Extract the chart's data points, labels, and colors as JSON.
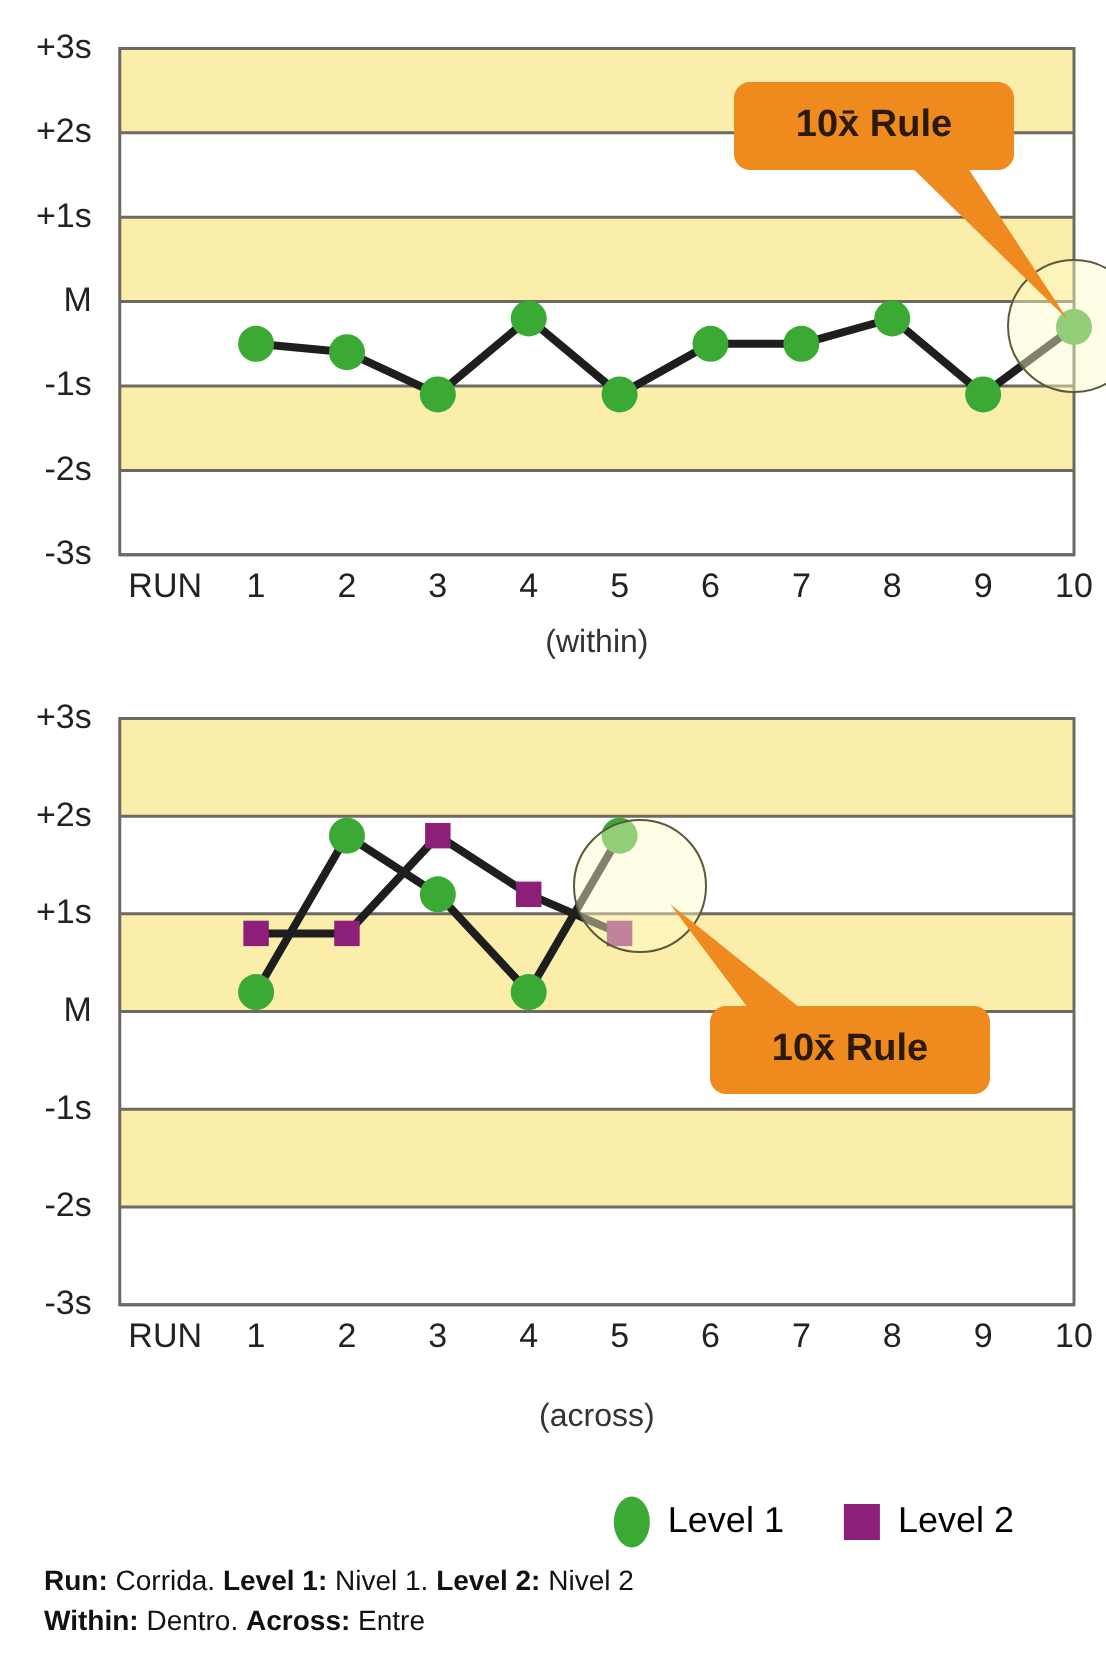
{
  "chart_data": [
    {
      "type": "line",
      "xlabel": "(within)",
      "x": [
        1,
        2,
        3,
        4,
        5,
        6,
        7,
        8,
        9,
        10
      ],
      "series": [
        {
          "color": "#3aaa35",
          "marker": "circle",
          "values": [
            -0.5,
            -0.6,
            -1.1,
            -0.2,
            -1.1,
            -0.5,
            -0.5,
            -0.2,
            -1.1,
            -0.3
          ]
        }
      ],
      "xlim": [
        -0.5,
        10
      ],
      "xticks": [
        {
          "value": 0,
          "label": "RUN"
        },
        1,
        2,
        3,
        4,
        5,
        6,
        7,
        8,
        9,
        10
      ],
      "ylim": [
        -3,
        3
      ],
      "yticks": [
        {
          "value": -3,
          "label": "-3s"
        },
        {
          "value": -2,
          "label": "-2s"
        },
        {
          "value": -1,
          "label": "-1s"
        },
        {
          "value": 0,
          "label": "M"
        },
        {
          "value": 1,
          "label": "+1s"
        },
        {
          "value": 2,
          "label": "+2s"
        },
        {
          "value": 3,
          "label": "+3s"
        }
      ],
      "bands": [
        {
          "axis": "y",
          "from": 2,
          "to": 3,
          "color": "#fbeeab"
        },
        {
          "axis": "y",
          "from": 0,
          "to": 1,
          "color": "#fbeeab"
        },
        {
          "axis": "y",
          "from": -2,
          "to": -1,
          "color": "#fbeeab"
        }
      ],
      "grid": "y",
      "legend": false,
      "annotations": [
        "10x̄ Rule"
      ]
    },
    {
      "type": "line",
      "xlabel": "(across)",
      "x": [
        1,
        2,
        3,
        4,
        5
      ],
      "series": [
        {
          "name": "Level 1",
          "color": "#3aaa35",
          "marker": "circle",
          "values": [
            0.2,
            1.8,
            1.2,
            0.2,
            1.8
          ]
        },
        {
          "name": "Level 2",
          "color": "#8e1f78",
          "marker": "square",
          "values": [
            0.8,
            0.8,
            1.8,
            1.2,
            0.8
          ]
        }
      ],
      "xlim": [
        -0.5,
        10
      ],
      "xticks": [
        {
          "value": 0,
          "label": "RUN"
        },
        1,
        2,
        3,
        4,
        5,
        6,
        7,
        8,
        9,
        10
      ],
      "ylim": [
        -3,
        3
      ],
      "yticks": [
        {
          "value": -3,
          "label": "-3s"
        },
        {
          "value": -2,
          "label": "-2s"
        },
        {
          "value": -1,
          "label": "-1s"
        },
        {
          "value": 0,
          "label": "M"
        },
        {
          "value": 1,
          "label": "+1s"
        },
        {
          "value": 2,
          "label": "+2s"
        },
        {
          "value": 3,
          "label": "+3s"
        }
      ],
      "bands": [
        {
          "axis": "y",
          "from": 2,
          "to": 3,
          "color": "#fbeeab"
        },
        {
          "axis": "y",
          "from": 0,
          "to": 1,
          "color": "#fbeeab"
        },
        {
          "axis": "y",
          "from": -2,
          "to": -1,
          "color": "#fbeeab"
        }
      ],
      "grid": "y",
      "legend": "bottom right",
      "annotations": [
        "10x̄ Rule",
        "Run: Corrida. Level 1: Nivel 1. Level 2: Nivel 2",
        "Within: Dentro. Across: Entre"
      ]
    }
  ]
}
